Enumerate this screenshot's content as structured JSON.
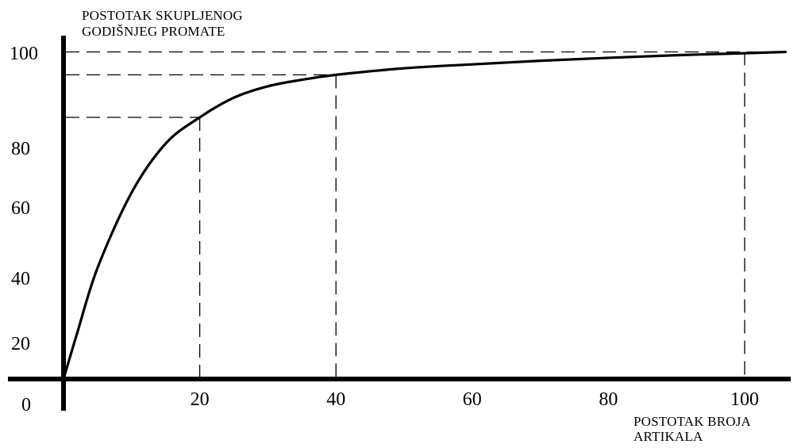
{
  "chart_data": {
    "type": "line",
    "title": "",
    "ylabel": "POSTOTAK SKUPLJENOG\nGODIŠNJEG PROMATE",
    "xlabel": "POSTOTAK BROJA\nARTIKALA",
    "xlim": [
      0,
      106
    ],
    "ylim": [
      0,
      100
    ],
    "origin_label": "0",
    "x_ticks": [
      {
        "value": 20,
        "label": "20"
      },
      {
        "value": 40,
        "label": "40"
      },
      {
        "value": 60,
        "label": "60"
      },
      {
        "value": 80,
        "label": "80"
      },
      {
        "value": 100,
        "label": "100"
      }
    ],
    "y_ticks": [
      {
        "value": 20,
        "label": "20"
      },
      {
        "value": 40,
        "label": "40"
      },
      {
        "value": 60,
        "label": "60"
      },
      {
        "value": 80,
        "label": "80"
      },
      {
        "value": 100,
        "label": "100"
      }
    ],
    "series": [
      {
        "x": [
          0,
          2,
          5,
          10,
          15,
          20,
          25,
          30,
          35,
          40,
          50,
          60,
          70,
          80,
          90,
          100,
          106
        ],
        "y": [
          0,
          14,
          34,
          57,
          72,
          80,
          86,
          89.5,
          91.5,
          93,
          95,
          96.2,
          97.3,
          98.2,
          99,
          99.6,
          100
        ]
      }
    ],
    "reference_lines": [
      {
        "x": 20,
        "y": 80
      },
      {
        "x": 40,
        "y": 93
      },
      {
        "x": 100,
        "y": 100
      }
    ],
    "grid": false,
    "legend": "none"
  }
}
